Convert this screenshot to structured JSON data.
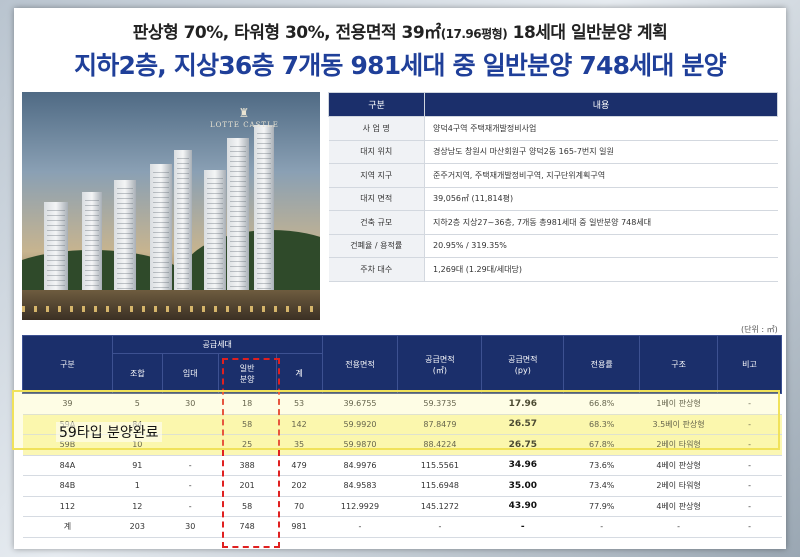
{
  "headline": {
    "line1_main": "판상형 70%, 타워형 30%, 전용면적 39㎡",
    "line1_small": "(17.96평형)",
    "line1_end": " 18세대 일반분양 계획",
    "line2": "지하2층, 지상36층 7개동 981세대 중 일반분양 748세대 분양"
  },
  "photo": {
    "logo_text": "LOTTE CASTLE"
  },
  "info_table": {
    "header": {
      "label": "구분",
      "value": "내용"
    },
    "rows": [
      {
        "label": "사 업 명",
        "value": "양덕4구역 주택재개발정비사업"
      },
      {
        "label": "대지 위치",
        "value": "경상남도 창원시 마산회원구 양덕2동 165-7번지 일원"
      },
      {
        "label": "지역 지구",
        "value": "준주거지역, 주택재개발정비구역, 지구단위계획구역"
      },
      {
        "label": "대지 면적",
        "value": "39,056㎡ (11,814평)"
      },
      {
        "label": "건축 규모",
        "value": "지하2층 지상27~36층, 7개동 총981세대 중 일반분양 748세대"
      },
      {
        "label": "건폐율 / 용적률",
        "value": "20.95% / 319.35%"
      },
      {
        "label": "주차 대수",
        "value": "1,269대 (1.29대/세대당)"
      }
    ]
  },
  "unit_note": "(단위 : ㎡)",
  "supply_table": {
    "headers": {
      "gubun": "구분",
      "supply_group": "공급세대",
      "johap": "조합",
      "imdae": "임대",
      "ilban": "일반\n분양",
      "gye": "계",
      "exclusive_area": "전용면적",
      "supply_area_m2": "공급면적\n(㎡)",
      "supply_area_py": "공급면적\n(py)",
      "exclusive_rate": "전용률",
      "structure": "구조",
      "remarks": "비고"
    },
    "rows": [
      {
        "type": "39",
        "johap": "5",
        "imdae": "30",
        "ilban": "18",
        "total": "53",
        "excl": "39.6755",
        "supply": "59.3735",
        "py": "17.96",
        "rate": "66.8%",
        "struct": "1베이 판상형",
        "note": "-"
      },
      {
        "type": "59A",
        "johap": "84",
        "imdae": "",
        "ilban": "58",
        "total": "142",
        "excl": "59.9920",
        "supply": "87.8479",
        "py": "26.57",
        "rate": "68.3%",
        "struct": "3.5베이 판상형",
        "note": "-"
      },
      {
        "type": "59B",
        "johap": "10",
        "imdae": "",
        "ilban": "25",
        "total": "35",
        "excl": "59.9870",
        "supply": "88.4224",
        "py": "26.75",
        "rate": "67.8%",
        "struct": "2베이 타워형",
        "note": "-"
      },
      {
        "type": "84A",
        "johap": "91",
        "imdae": "-",
        "ilban": "388",
        "total": "479",
        "excl": "84.9976",
        "supply": "115.5561",
        "py": "34.96",
        "rate": "73.6%",
        "struct": "4베이 판상형",
        "note": "-"
      },
      {
        "type": "84B",
        "johap": "1",
        "imdae": "-",
        "ilban": "201",
        "total": "202",
        "excl": "84.9583",
        "supply": "115.6948",
        "py": "35.00",
        "rate": "73.4%",
        "struct": "2베이 타워형",
        "note": "-"
      },
      {
        "type": "112",
        "johap": "12",
        "imdae": "-",
        "ilban": "58",
        "total": "70",
        "excl": "112.9929",
        "supply": "145.1272",
        "py": "43.90",
        "rate": "77.9%",
        "struct": "4베이 판상형",
        "note": "-"
      },
      {
        "type": "계",
        "johap": "203",
        "imdae": "30",
        "ilban": "748",
        "total": "981",
        "excl": "-",
        "supply": "-",
        "py": "-",
        "rate": "-",
        "struct": "-",
        "note": "-"
      }
    ]
  },
  "sold_note": "59타입 분양완료",
  "colors": {
    "headline_blue": "#1f3f99",
    "table_header_navy": "#1b2f6b",
    "highlight_yellow": "#fbf7b4",
    "dash_red": "#e02020"
  }
}
